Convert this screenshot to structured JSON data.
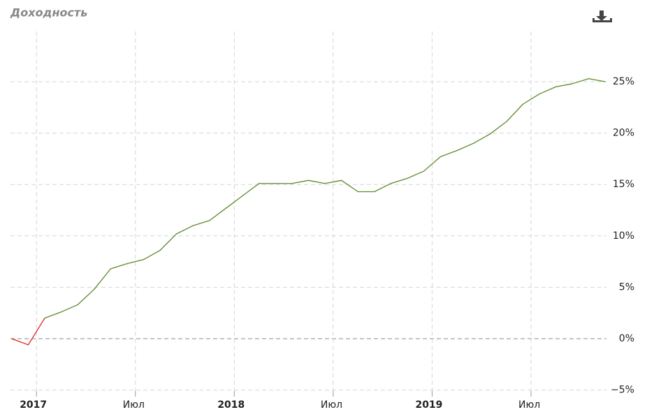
{
  "chart_data": {
    "type": "line",
    "title": "Доходность",
    "x": [
      "2016-11",
      "2016-12",
      "2017-01",
      "2017-02",
      "2017-03",
      "2017-04",
      "2017-05",
      "2017-06",
      "2017-07",
      "2017-08",
      "2017-09",
      "2017-10",
      "2017-11",
      "2017-12",
      "2018-01",
      "2018-02",
      "2018-03",
      "2018-04",
      "2018-05",
      "2018-06",
      "2018-07",
      "2018-08",
      "2018-09",
      "2018-10",
      "2018-11",
      "2018-12",
      "2019-01",
      "2019-02",
      "2019-03",
      "2019-04",
      "2019-05",
      "2019-06",
      "2019-07",
      "2019-08",
      "2019-09",
      "2019-10",
      "2019-11"
    ],
    "series": [
      {
        "color": "#5b8a2b",
        "negative_color": "#e02020",
        "values": [
          0,
          -0.6,
          2.0,
          2.6,
          3.3,
          4.8,
          6.8,
          7.3,
          7.7,
          8.6,
          10.2,
          11.0,
          11.5,
          12.7,
          13.9,
          15.1,
          15.1,
          15.1,
          15.4,
          15.1,
          15.4,
          14.3,
          14.3,
          15.1,
          15.6,
          16.3,
          17.7,
          18.3,
          19.0,
          19.9,
          21.1,
          22.8,
          23.8,
          24.5,
          24.8,
          25.3,
          25.0
        ]
      }
    ],
    "xlim": [
      "2016-11",
      "2019-12"
    ],
    "xticks": [
      {
        "value": "2017-01",
        "label": "2017"
      },
      {
        "value": "2017-07",
        "label": "Июл"
      },
      {
        "value": "2018-01",
        "label": "2018"
      },
      {
        "value": "2018-07",
        "label": "Июл"
      },
      {
        "value": "2019-01",
        "label": "2019"
      },
      {
        "value": "2019-07",
        "label": "Июл"
      }
    ],
    "ylim": [
      -6,
      30
    ],
    "yticks": [
      {
        "value": -5,
        "label": "−5%"
      },
      {
        "value": 0,
        "label": "0%"
      },
      {
        "value": 5,
        "label": "5%"
      },
      {
        "value": 10,
        "label": "10%"
      },
      {
        "value": 15,
        "label": "15%"
      },
      {
        "value": 20,
        "label": "20%"
      },
      {
        "value": 25,
        "label": "25%"
      }
    ],
    "grid": true,
    "zero_line": true
  }
}
